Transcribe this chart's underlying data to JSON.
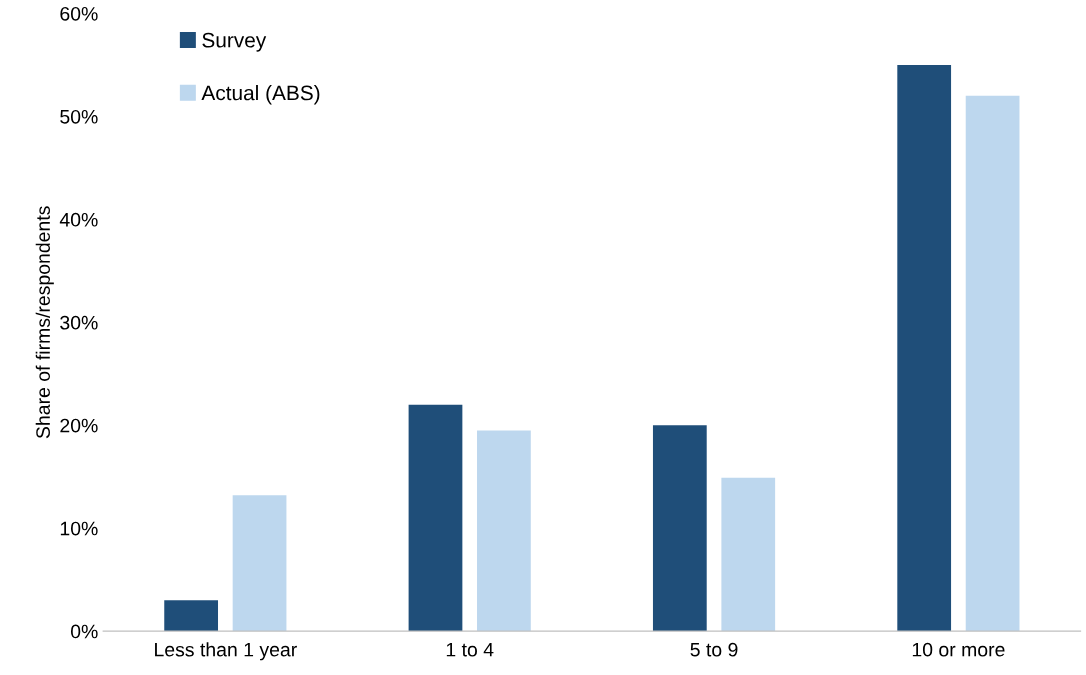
{
  "chart_data": {
    "type": "bar",
    "ylabel": "Share of firms/respondents",
    "categories": [
      "Less than 1 year",
      "1 to 4",
      "5 to 9",
      "10 or more"
    ],
    "series": [
      {
        "name": "Survey",
        "color": "#1f4e79",
        "values": [
          3,
          22,
          20,
          55
        ]
      },
      {
        "name": "Actual (ABS)",
        "color": "#bdd7ee",
        "values": [
          13.2,
          19.5,
          14.9,
          52
        ]
      }
    ],
    "ylim": [
      0,
      60
    ],
    "yticks": [
      {
        "value": 0,
        "label": "0%"
      },
      {
        "value": 10,
        "label": "10%"
      },
      {
        "value": 20,
        "label": "20%"
      },
      {
        "value": 30,
        "label": "30%"
      },
      {
        "value": 40,
        "label": "40%"
      },
      {
        "value": 50,
        "label": "50%"
      },
      {
        "value": 60,
        "label": "60%"
      }
    ],
    "grid": false,
    "legend": "top left"
  }
}
